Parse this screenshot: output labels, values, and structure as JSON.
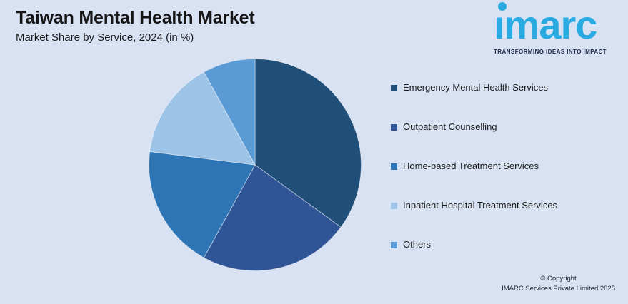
{
  "page": {
    "background_color": "#D9E2F2"
  },
  "header": {
    "title": "Taiwan Mental Health Market",
    "subtitle": "Market Share by Service, 2024 (in %)"
  },
  "logo": {
    "brand": "imarc",
    "brand_render": "ımarc",
    "tagline": "TRANSFORMING IDEAS INTO IMPACT",
    "brand_color": "#29ABE2",
    "tagline_color": "#1B2A4A"
  },
  "chart_data": {
    "type": "pie",
    "title": "Taiwan Mental Health Market",
    "subtitle": "Market Share by Service, 2024 (in %)",
    "unit": "percent",
    "start_angle_deg": 0,
    "direction": "clockwise",
    "legend_position": "right",
    "data_labels_shown": false,
    "slices": [
      {
        "label": "Emergency Mental Health Services",
        "value": 35,
        "color": "#1F4E79"
      },
      {
        "label": "Outpatient Counselling",
        "value": 23,
        "color": "#2F5597"
      },
      {
        "label": "Home-based Treatment Services",
        "value": 19,
        "color": "#2E75B6"
      },
      {
        "label": "Inpatient Hospital Treatment Services",
        "value": 15,
        "color": "#9DC3E6"
      },
      {
        "label": "Others",
        "value": 8,
        "color": "#5B9BD5"
      }
    ]
  },
  "footer": {
    "line1": "© Copyright",
    "line2": "IMARC Services Private Limited 2025"
  }
}
